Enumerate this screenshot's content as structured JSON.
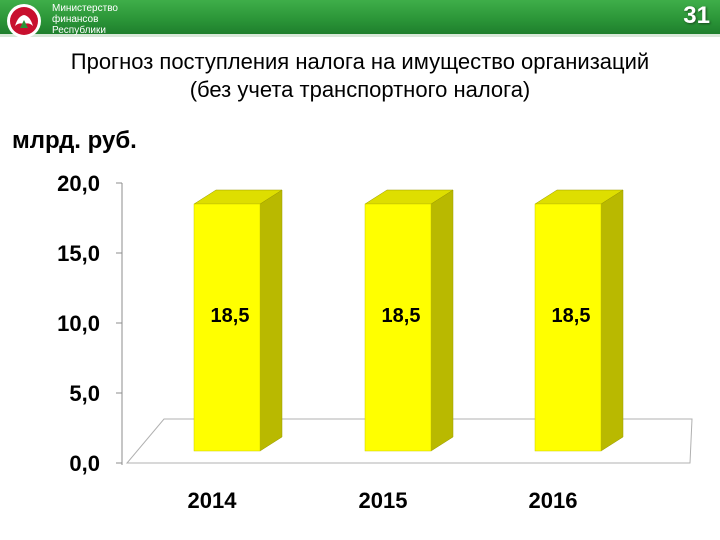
{
  "header": {
    "ministry_lines": [
      "Министерство",
      "финансов",
      "Республики"
    ],
    "slide_number": "31",
    "accent": "#2a9437"
  },
  "title": {
    "line1": "Прогноз поступления налога на имущество организаций",
    "line2": "(без учета транспортного налога)"
  },
  "chart_data": {
    "type": "bar",
    "title": "Прогноз поступления налога на имущество организаций (без учета транспортного налога)",
    "ylabel": "млрд. руб.",
    "xlabel": "",
    "categories": [
      "2014",
      "2015",
      "2016"
    ],
    "values": [
      18.5,
      18.5,
      18.5
    ],
    "data_labels": [
      "18,5",
      "18,5",
      "18,5"
    ],
    "y_ticks": [
      "0,0",
      "5,0",
      "10,0",
      "15,0",
      "20,0"
    ],
    "y_tick_values": [
      0,
      5,
      10,
      15,
      20
    ],
    "ylim": [
      0,
      20
    ],
    "grid": false,
    "legend": "none",
    "bar_color": "#ffff00",
    "bar_side_color": "#b9b900"
  }
}
